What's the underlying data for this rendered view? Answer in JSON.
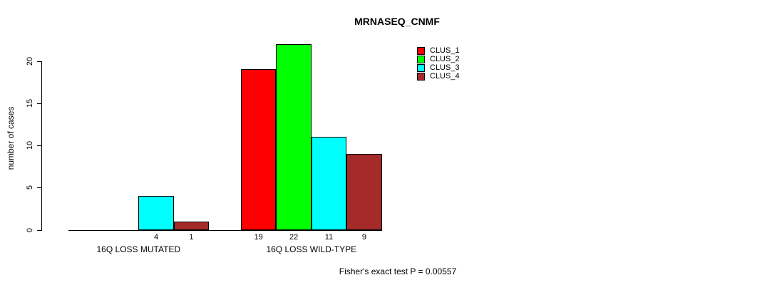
{
  "chart_data": {
    "type": "bar",
    "title": "MRNASEQ_CNMF",
    "ylabel": "number of cases",
    "xlabel": "",
    "footer": "Fisher's exact test P = 0.00557",
    "categories": [
      "16Q LOSS MUTATED",
      "16Q LOSS WILD-TYPE"
    ],
    "series": [
      {
        "name": "CLUS_1",
        "color": "#FF0000",
        "values": [
          0,
          19
        ]
      },
      {
        "name": "CLUS_2",
        "color": "#00FF00",
        "values": [
          0,
          22
        ]
      },
      {
        "name": "CLUS_3",
        "color": "#00FFFF",
        "values": [
          4,
          11
        ]
      },
      {
        "name": "CLUS_4",
        "color": "#A52A2A",
        "values": [
          1,
          9
        ]
      }
    ],
    "yticks": [
      0,
      5,
      10,
      15,
      20
    ],
    "ylim": [
      0,
      22
    ],
    "grid": false,
    "legend_position": "top-right",
    "value_labels_shown_for_nonzero_bars": true,
    "axis_color": "#000000"
  }
}
